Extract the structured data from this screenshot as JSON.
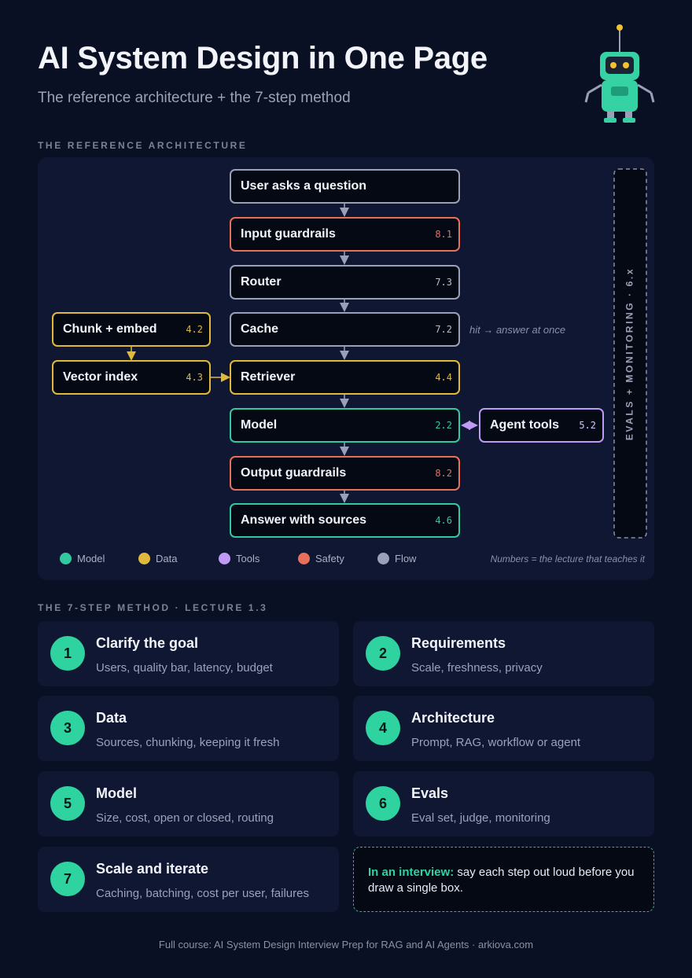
{
  "header": {
    "title": "AI System Design in One Page",
    "subtitle": "The reference architecture + the 7-step method"
  },
  "architecture": {
    "heading": "THE REFERENCE ARCHITECTURE",
    "pipeline": [
      {
        "label": "User asks a question"
      },
      {
        "label": "Input guardrails",
        "lecture": "8.1"
      },
      {
        "label": "Router",
        "lecture": "7.3"
      },
      {
        "label": "Cache",
        "lecture": "7.2"
      },
      {
        "label": "Retriever",
        "lecture": "4.4"
      },
      {
        "label": "Model",
        "lecture": "2.2"
      },
      {
        "label": "Output guardrails",
        "lecture": "8.2"
      },
      {
        "label": "Answer with sources",
        "lecture": "4.6"
      }
    ],
    "cache_note": "hit → answer at once",
    "ingestion": [
      {
        "label": "Chunk + embed",
        "lecture": "4.2"
      },
      {
        "label": "Vector index",
        "lecture": "4.3"
      }
    ],
    "agent_tools": {
      "label": "Agent tools",
      "lecture": "5.2"
    },
    "side_rail": "EVALS + MONITORING · 6.x",
    "legend": [
      "Model",
      "Data",
      "Tools",
      "Safety",
      "Flow"
    ],
    "footnote": "Numbers = the lecture that teaches it"
  },
  "method": {
    "heading": "THE 7-STEP METHOD · LECTURE 1.3",
    "steps": [
      {
        "number": 1,
        "title": "Clarify the goal",
        "description": "Users, quality bar, latency, budget"
      },
      {
        "number": 2,
        "title": "Requirements",
        "description": "Scale, freshness, privacy"
      },
      {
        "number": 3,
        "title": "Data",
        "description": "Sources, chunking, keeping it fresh"
      },
      {
        "number": 4,
        "title": "Architecture",
        "description": "Prompt, RAG, workflow or agent"
      },
      {
        "number": 5,
        "title": "Model",
        "description": "Size, cost, open or closed, routing"
      },
      {
        "number": 6,
        "title": "Evals",
        "description": "Eval set, judge, monitoring"
      },
      {
        "number": 7,
        "title": "Scale and iterate",
        "description": "Caching, batching, cost per user, failures"
      }
    ],
    "tip": {
      "lead": "In an interview:",
      "text": "say each step out loud before you draw a single box."
    }
  },
  "footer": "Full course: AI System Design Interview Prep for RAG and AI Agents · arkiova.com"
}
